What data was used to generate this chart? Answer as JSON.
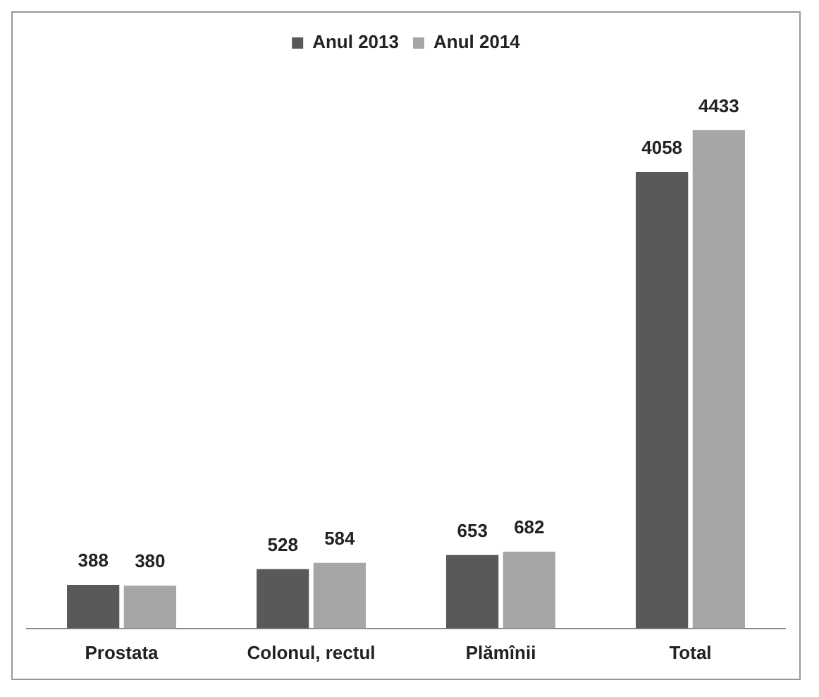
{
  "chart_data": {
    "type": "bar",
    "categories": [
      "Prostata",
      "Colonul, rectul",
      "Plămînii",
      "Total"
    ],
    "series": [
      {
        "name": "Anul 2013",
        "color": "#595959",
        "values": [
          388,
          528,
          653,
          4058
        ]
      },
      {
        "name": "Anul 2014",
        "color": "#a6a6a6",
        "values": [
          380,
          584,
          682,
          4433
        ]
      }
    ],
    "data_labels": true,
    "legend": "top",
    "grid": false
  }
}
